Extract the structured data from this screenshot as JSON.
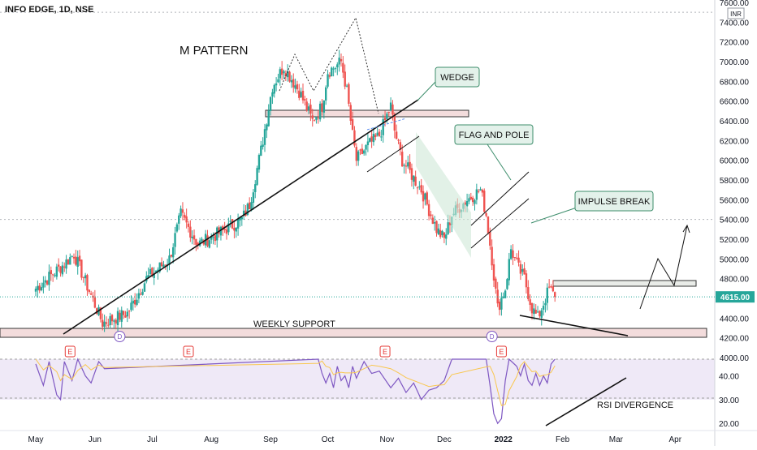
{
  "chart_data": {
    "type": "candlestick",
    "title": "INFO EDGE, 1D, NSE",
    "currency": "INR",
    "price_axis": {
      "min": 4000,
      "max": 7600,
      "step": 200,
      "ticks": [
        "7600.00",
        "7400.00",
        "7200.00",
        "7000.00",
        "6800.00",
        "6600.00",
        "6400.00",
        "6200.00",
        "6000.00",
        "5800.00",
        "5600.00",
        "5400.00",
        "5200.00",
        "5000.00",
        "4800.00",
        "4600.00",
        "4400.00",
        "4200.00",
        "4000.00"
      ]
    },
    "last_price": 4615.0,
    "last_price_label": "4615.00",
    "time_axis": {
      "labels": [
        "May",
        "Jun",
        "Jul",
        "Aug",
        "Sep",
        "Oct",
        "Nov",
        "Dec",
        "2022",
        "Feb",
        "Mar",
        "Apr"
      ],
      "label_day": [
        0,
        31,
        61,
        92,
        123,
        153,
        184,
        214,
        245,
        276,
        304,
        335
      ],
      "bold_label": "2022",
      "first_day": "2021-05-01"
    },
    "ohlc_anchors": [
      {
        "day": 0,
        "close": 4700
      },
      {
        "day": 15,
        "close": 4950
      },
      {
        "day": 20,
        "close": 5050
      },
      {
        "day": 35,
        "close": 4350
      },
      {
        "day": 48,
        "close": 4450
      },
      {
        "day": 58,
        "close": 4800
      },
      {
        "day": 70,
        "close": 5000
      },
      {
        "day": 76,
        "close": 5450
      },
      {
        "day": 85,
        "close": 5150
      },
      {
        "day": 95,
        "close": 5250
      },
      {
        "day": 108,
        "close": 5400
      },
      {
        "day": 112,
        "close": 5550
      },
      {
        "day": 118,
        "close": 6100
      },
      {
        "day": 124,
        "close": 6750
      },
      {
        "day": 130,
        "close": 6950
      },
      {
        "day": 138,
        "close": 6700
      },
      {
        "day": 145,
        "close": 6400
      },
      {
        "day": 150,
        "close": 6550
      },
      {
        "day": 153,
        "close": 6900
      },
      {
        "day": 157,
        "close": 6950
      },
      {
        "day": 160,
        "close": 7000
      },
      {
        "day": 163,
        "close": 6700
      },
      {
        "day": 166,
        "close": 6250
      },
      {
        "day": 168,
        "close": 6000
      },
      {
        "day": 174,
        "close": 6150
      },
      {
        "day": 180,
        "close": 6250
      },
      {
        "day": 186,
        "close": 6550
      },
      {
        "day": 188,
        "close": 6300
      },
      {
        "day": 192,
        "close": 6000
      },
      {
        "day": 202,
        "close": 5700
      },
      {
        "day": 210,
        "close": 5300
      },
      {
        "day": 214,
        "close": 5200
      },
      {
        "day": 218,
        "close": 5450
      },
      {
        "day": 226,
        "close": 5600
      },
      {
        "day": 233,
        "close": 5700
      },
      {
        "day": 236,
        "close": 5450
      },
      {
        "day": 239,
        "close": 5000
      },
      {
        "day": 242,
        "close": 4500
      },
      {
        "day": 246,
        "close": 4700
      },
      {
        "day": 249,
        "close": 5100
      },
      {
        "day": 253,
        "close": 4900
      },
      {
        "day": 256,
        "close": 4800
      },
      {
        "day": 260,
        "close": 4500
      },
      {
        "day": 263,
        "close": 4400
      },
      {
        "day": 266,
        "close": 4550
      },
      {
        "day": 269,
        "close": 4700
      },
      {
        "day": 272,
        "close": 4615
      }
    ],
    "rsi": {
      "ticks": [
        "40.00",
        "30.00",
        "20.00"
      ],
      "band": [
        30,
        70
      ],
      "min": 17,
      "max": 47,
      "points": [
        [
          0,
          45
        ],
        [
          4,
          36
        ],
        [
          7,
          46
        ],
        [
          11,
          32
        ],
        [
          13,
          30
        ],
        [
          15,
          46
        ],
        [
          19,
          38
        ],
        [
          22,
          47
        ],
        [
          26,
          40
        ],
        [
          29,
          37
        ],
        [
          33,
          46
        ],
        [
          36,
          43
        ],
        [
          148,
          47
        ],
        [
          150,
          41
        ],
        [
          152,
          37
        ],
        [
          154,
          41
        ],
        [
          156,
          35
        ],
        [
          158,
          44
        ],
        [
          160,
          38
        ],
        [
          162,
          40
        ],
        [
          164,
          35
        ],
        [
          166,
          44
        ],
        [
          168,
          39
        ],
        [
          172,
          46
        ],
        [
          176,
          41
        ],
        [
          180,
          42
        ],
        [
          186,
          35
        ],
        [
          190,
          39
        ],
        [
          194,
          33
        ],
        [
          198,
          37
        ],
        [
          202,
          30
        ],
        [
          206,
          34
        ],
        [
          210,
          35
        ],
        [
          214,
          38
        ],
        [
          218,
          47
        ],
        [
          236,
          47
        ],
        [
          238,
          36
        ],
        [
          240,
          24
        ],
        [
          242,
          20
        ],
        [
          244,
          22
        ],
        [
          246,
          38
        ],
        [
          248,
          47
        ],
        [
          252,
          44
        ],
        [
          254,
          40
        ],
        [
          256,
          45
        ],
        [
          258,
          38
        ],
        [
          260,
          36
        ],
        [
          262,
          41
        ],
        [
          264,
          36
        ],
        [
          266,
          40
        ],
        [
          268,
          37
        ],
        [
          270,
          45
        ],
        [
          272,
          47
        ]
      ]
    },
    "annotations": {
      "m_pattern": "M PATTERN",
      "wedge": "WEDGE",
      "flag_and_pole": "FLAG AND POLE",
      "impulse_break": "IMPULSE BREAK",
      "weekly_support": "WEEKLY SUPPORT",
      "rsi_divergence": "RSI DIVERGENCE"
    },
    "event_markers": {
      "earnings": "E",
      "dividend": "D",
      "earnings_days": [
        18,
        80,
        183,
        244
      ],
      "dividend_days": [
        44,
        239
      ]
    },
    "zones": {
      "weekly_support": [
        4210,
        4290
      ],
      "neckline": [
        6420,
        6480
      ],
      "breakout": [
        4740,
        4790
      ]
    },
    "colors": {
      "up": "#26a69a",
      "down": "#ef5350",
      "rsi_line": "#7e57c2",
      "rsi_ma": "#f9c74f",
      "zone": "#f3dcdc",
      "callout": "#e3f1ea",
      "last_price": "#26a69a"
    }
  }
}
